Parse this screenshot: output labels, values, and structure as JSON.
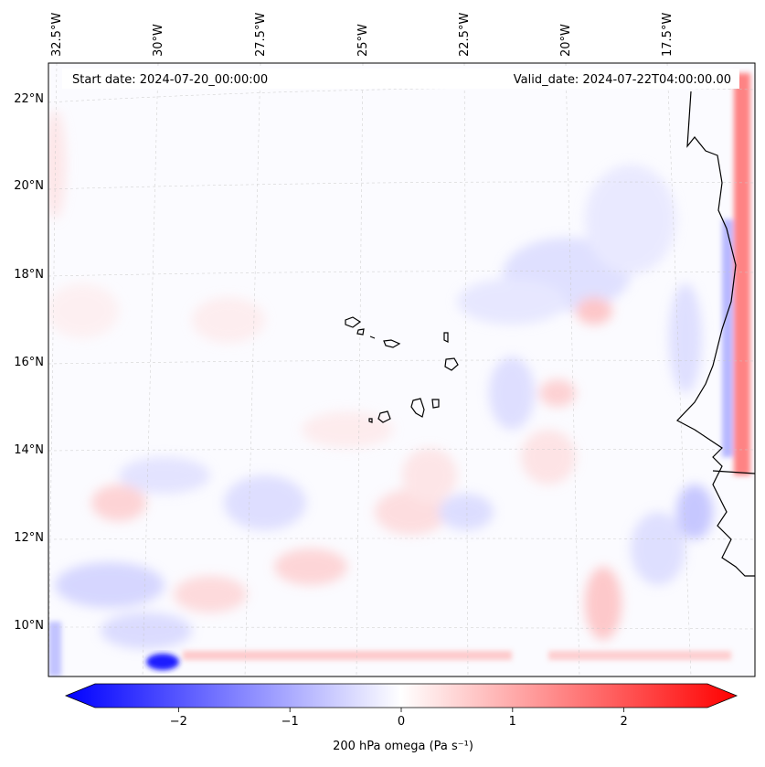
{
  "header": {
    "start_date": "Start date: 2024-07-20_00:00:00",
    "valid_date": "Valid_date: 2024-07-22T04:00:00.00"
  },
  "map": {
    "projection": "lambert-conformal",
    "longitude_labels": [
      "32.5°W",
      "30°W",
      "27.5°W",
      "25°W",
      "22.5°W",
      "20°W",
      "17.5°W"
    ],
    "latitude_labels": [
      "22°N",
      "20°N",
      "18°N",
      "16°N",
      "14°N",
      "12°N",
      "10°N"
    ],
    "features": [
      "Cape Verde islands",
      "West African coastline",
      "Senegal",
      "Guinea-Bissau"
    ]
  },
  "colorbar": {
    "label": "200 hPa omega (Pa s⁻¹)",
    "ticks": [
      "−2",
      "−1",
      "0",
      "1",
      "2"
    ],
    "tick_values": [
      -2,
      -1,
      0,
      1,
      2
    ],
    "range": [
      -2.75,
      2.75
    ],
    "colormap": "bwr",
    "extend": "both",
    "colors": {
      "low": "#0000ff",
      "mid": "#ffffff",
      "high": "#ff0000"
    }
  }
}
